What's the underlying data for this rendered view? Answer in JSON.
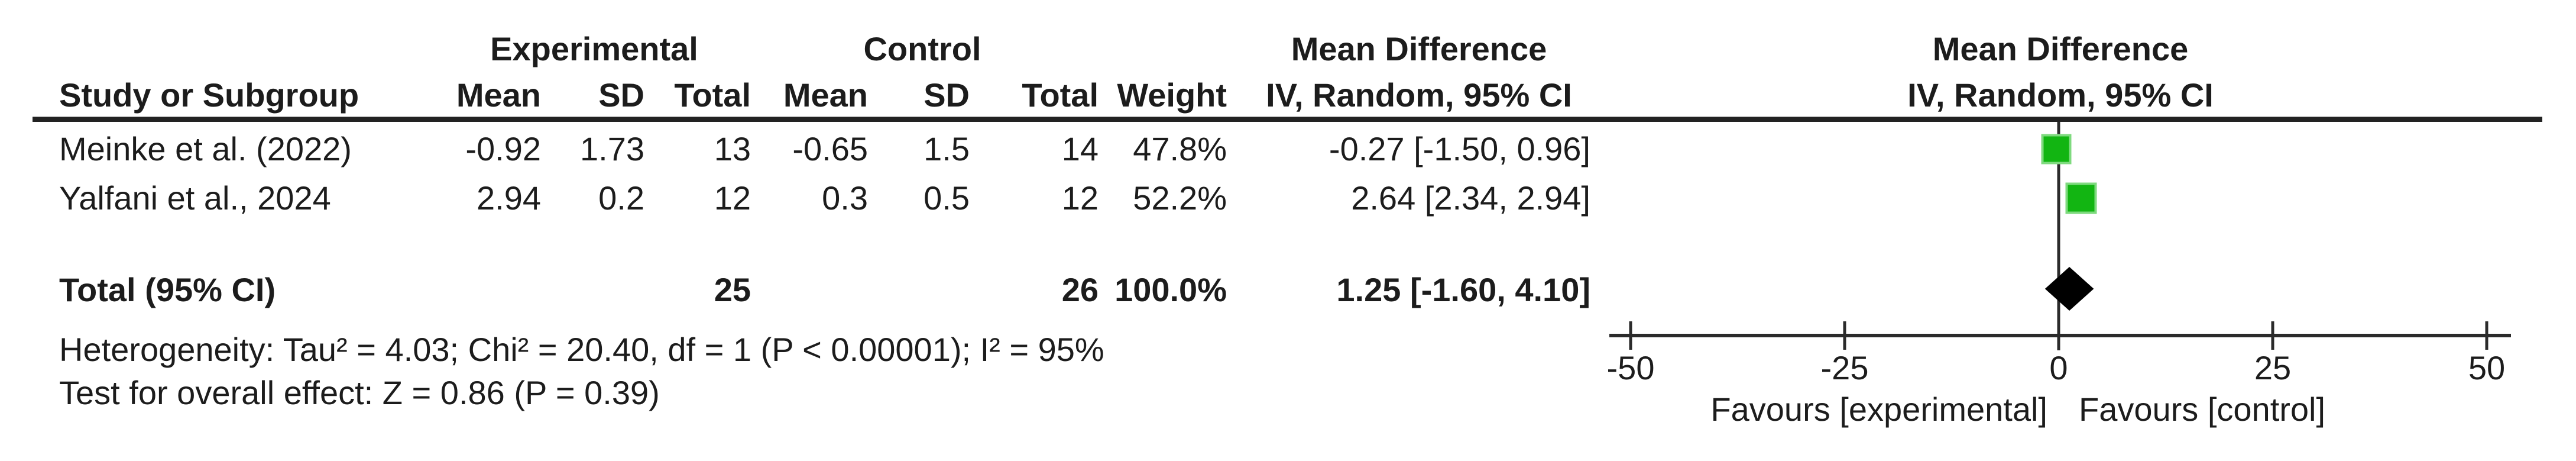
{
  "table": {
    "headers": {
      "group_experimental": "Experimental",
      "group_control": "Control",
      "mean_difference": "Mean Difference",
      "study": "Study or Subgroup",
      "mean": "Mean",
      "sd": "SD",
      "total": "Total",
      "weight": "Weight",
      "iv_random": "IV, Random, 95% CI"
    },
    "rows": [
      {
        "study": "Meinke et al. (2022)",
        "exp_mean": "-0.92",
        "exp_sd": "1.73",
        "exp_total": "13",
        "ctrl_mean": "-0.65",
        "ctrl_sd": "1.5",
        "ctrl_total": "14",
        "weight": "47.8%",
        "md_ci": "-0.27 [-1.50, 0.96]"
      },
      {
        "study": "Yalfani et al., 2024",
        "exp_mean": "2.94",
        "exp_sd": "0.2",
        "exp_total": "12",
        "ctrl_mean": "0.3",
        "ctrl_sd": "0.5",
        "ctrl_total": "12",
        "weight": "52.2%",
        "md_ci": "2.64 [2.34, 2.94]"
      }
    ],
    "total_row": {
      "label": "Total (95% CI)",
      "exp_total": "25",
      "ctrl_total": "26",
      "weight": "100.0%",
      "md_ci": "1.25 [-1.60, 4.10]"
    },
    "heterogeneity": "Heterogeneity: Tau² = 4.03; Chi² = 20.40, df = 1 (P < 0.00001); I² = 95%",
    "overall_effect": "Test for overall effect: Z = 0.86 (P = 0.39)"
  },
  "plot": {
    "header_line1": "Mean Difference",
    "header_line2": "IV, Random, 95% CI",
    "favours_left": "Favours [experimental]",
    "favours_right": "Favours [control]",
    "marker_color": "#12b512",
    "marker_border_color": "#7fda7f",
    "diamond_color": "#000000",
    "line_color": "#2b2b2b"
  },
  "chart_data": {
    "type": "forest",
    "title": "Mean Difference, IV, Random, 95% CI",
    "effect_model": "IV, Random, 95% CI",
    "x_axis": {
      "ticks": [
        -50,
        -25,
        0,
        25,
        50
      ],
      "tick_labels": [
        "-50",
        "-25",
        "0",
        "25",
        "50"
      ],
      "range": [
        -52.5,
        52.8
      ],
      "label_left": "Favours [experimental]",
      "label_right": "Favours [control]"
    },
    "studies": [
      {
        "name": "Meinke et al. (2022)",
        "md": -0.27,
        "ci_low": -1.5,
        "ci_high": 0.96,
        "weight_pct": 47.8
      },
      {
        "name": "Yalfani et al., 2024",
        "md": 2.64,
        "ci_low": 2.34,
        "ci_high": 2.94,
        "weight_pct": 52.2
      }
    ],
    "total": {
      "label": "Total (95% CI)",
      "md": 1.25,
      "ci_low": -1.6,
      "ci_high": 4.1,
      "weight_pct": 100.0
    },
    "heterogeneity": {
      "tau2": 4.03,
      "chi2": 20.4,
      "df": 1,
      "p": "< 0.00001",
      "i2_pct": 95
    },
    "overall_effect": {
      "z": 0.86,
      "p": 0.39
    }
  }
}
